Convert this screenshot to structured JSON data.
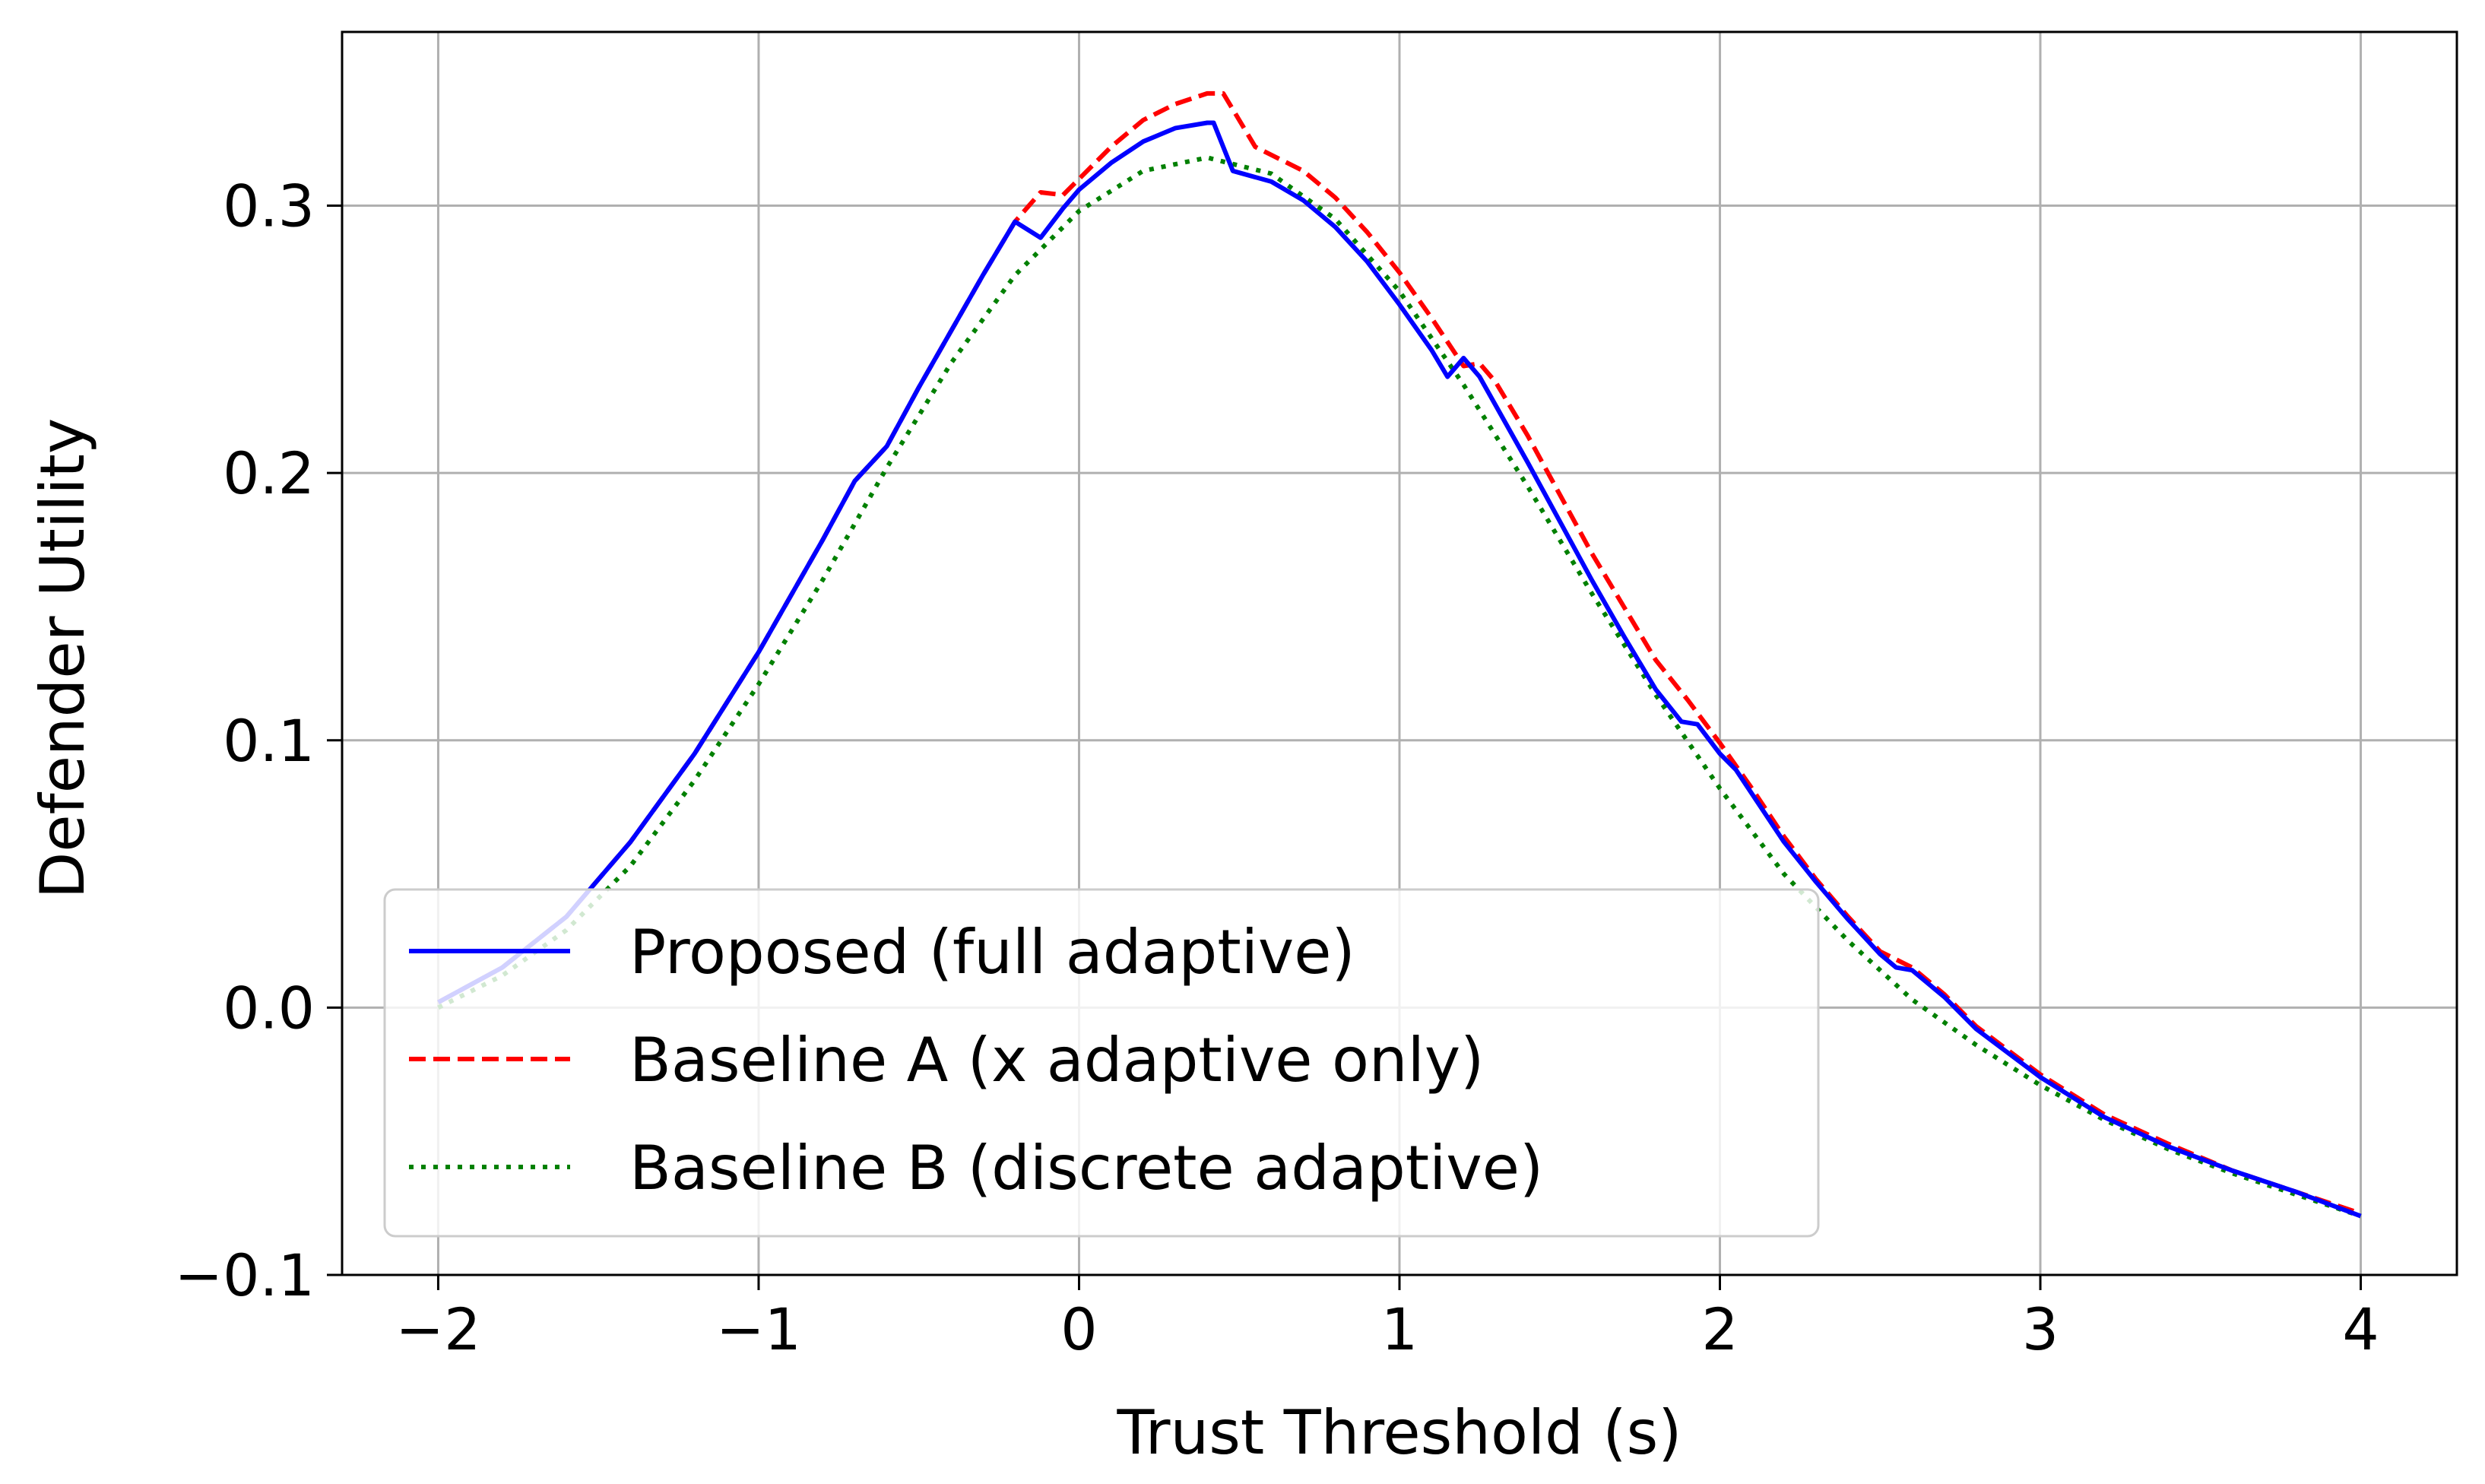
{
  "chart_data": {
    "type": "line",
    "title": "",
    "xlabel": "Trust Threshold (s)",
    "ylabel": "Defender Utility",
    "xlim": [
      -2.3,
      4.3
    ],
    "ylim": [
      -0.1,
      0.365
    ],
    "xticks": [
      -2,
      -1,
      0,
      1,
      2,
      3,
      4
    ],
    "xtick_labels": [
      "−2",
      "−1",
      "0",
      "1",
      "2",
      "3",
      "4"
    ],
    "yticks": [
      -0.1,
      0.0,
      0.1,
      0.2,
      0.3
    ],
    "ytick_labels": [
      "−0.1",
      "0.0",
      "0.1",
      "0.2",
      "0.3"
    ],
    "grid": true,
    "legend_position": "lower-left",
    "series": [
      {
        "name": "Proposed (full adaptive)",
        "color": "#0000ff",
        "style": "solid",
        "points": [
          [
            -2.0,
            0.002
          ],
          [
            -1.8,
            0.015
          ],
          [
            -1.6,
            0.034
          ],
          [
            -1.4,
            0.062
          ],
          [
            -1.2,
            0.095
          ],
          [
            -1.0,
            0.133
          ],
          [
            -0.8,
            0.175
          ],
          [
            -0.7,
            0.197
          ],
          [
            -0.6,
            0.21
          ],
          [
            -0.5,
            0.232
          ],
          [
            -0.4,
            0.253
          ],
          [
            -0.3,
            0.274
          ],
          [
            -0.2,
            0.294
          ],
          [
            -0.12,
            0.288
          ],
          [
            -0.05,
            0.299
          ],
          [
            0.0,
            0.306
          ],
          [
            0.1,
            0.316
          ],
          [
            0.2,
            0.324
          ],
          [
            0.3,
            0.329
          ],
          [
            0.4,
            0.331
          ],
          [
            0.42,
            0.331
          ],
          [
            0.48,
            0.313
          ],
          [
            0.6,
            0.309
          ],
          [
            0.7,
            0.302
          ],
          [
            0.8,
            0.292
          ],
          [
            0.9,
            0.279
          ],
          [
            1.0,
            0.263
          ],
          [
            1.1,
            0.246
          ],
          [
            1.15,
            0.236
          ],
          [
            1.2,
            0.243
          ],
          [
            1.25,
            0.236
          ],
          [
            1.4,
            0.204
          ],
          [
            1.5,
            0.182
          ],
          [
            1.6,
            0.16
          ],
          [
            1.7,
            0.139
          ],
          [
            1.8,
            0.119
          ],
          [
            1.88,
            0.107
          ],
          [
            1.93,
            0.106
          ],
          [
            2.0,
            0.095
          ],
          [
            2.05,
            0.089
          ],
          [
            2.2,
            0.062
          ],
          [
            2.3,
            0.047
          ],
          [
            2.4,
            0.033
          ],
          [
            2.5,
            0.02
          ],
          [
            2.55,
            0.015
          ],
          [
            2.6,
            0.014
          ],
          [
            2.7,
            0.004
          ],
          [
            2.8,
            -0.008
          ],
          [
            3.0,
            -0.026
          ],
          [
            3.2,
            -0.041
          ],
          [
            3.4,
            -0.052
          ],
          [
            3.6,
            -0.061
          ],
          [
            3.8,
            -0.069
          ],
          [
            4.0,
            -0.078
          ]
        ]
      },
      {
        "name": "Baseline A (x adaptive only)",
        "color": "#ff0000",
        "style": "dashed",
        "points": [
          [
            -2.0,
            0.002
          ],
          [
            -1.8,
            0.015
          ],
          [
            -1.6,
            0.034
          ],
          [
            -1.4,
            0.062
          ],
          [
            -1.2,
            0.095
          ],
          [
            -1.0,
            0.133
          ],
          [
            -0.8,
            0.175
          ],
          [
            -0.7,
            0.197
          ],
          [
            -0.6,
            0.21
          ],
          [
            -0.5,
            0.232
          ],
          [
            -0.4,
            0.253
          ],
          [
            -0.3,
            0.274
          ],
          [
            -0.2,
            0.294
          ],
          [
            -0.12,
            0.305
          ],
          [
            -0.05,
            0.304
          ],
          [
            0.0,
            0.31
          ],
          [
            0.1,
            0.322
          ],
          [
            0.2,
            0.332
          ],
          [
            0.3,
            0.338
          ],
          [
            0.4,
            0.342
          ],
          [
            0.45,
            0.342
          ],
          [
            0.55,
            0.322
          ],
          [
            0.7,
            0.313
          ],
          [
            0.8,
            0.303
          ],
          [
            0.9,
            0.29
          ],
          [
            1.0,
            0.275
          ],
          [
            1.1,
            0.258
          ],
          [
            1.2,
            0.24
          ],
          [
            1.25,
            0.241
          ],
          [
            1.3,
            0.234
          ],
          [
            1.4,
            0.214
          ],
          [
            1.5,
            0.192
          ],
          [
            1.6,
            0.17
          ],
          [
            1.7,
            0.15
          ],
          [
            1.8,
            0.13
          ],
          [
            1.9,
            0.115
          ],
          [
            2.0,
            0.099
          ],
          [
            2.1,
            0.082
          ],
          [
            2.2,
            0.064
          ],
          [
            2.3,
            0.048
          ],
          [
            2.4,
            0.034
          ],
          [
            2.5,
            0.021
          ],
          [
            2.6,
            0.015
          ],
          [
            2.7,
            0.005
          ],
          [
            2.8,
            -0.007
          ],
          [
            3.0,
            -0.025
          ],
          [
            3.2,
            -0.04
          ],
          [
            3.4,
            -0.051
          ],
          [
            3.6,
            -0.061
          ],
          [
            3.8,
            -0.069
          ],
          [
            4.0,
            -0.077
          ]
        ]
      },
      {
        "name": "Baseline B (discrete adaptive)",
        "color": "#008000",
        "style": "dotted",
        "points": [
          [
            -2.0,
            0.0
          ],
          [
            -1.8,
            0.012
          ],
          [
            -1.6,
            0.029
          ],
          [
            -1.4,
            0.053
          ],
          [
            -1.2,
            0.085
          ],
          [
            -1.0,
            0.121
          ],
          [
            -0.8,
            0.16
          ],
          [
            -0.6,
            0.202
          ],
          [
            -0.4,
            0.241
          ],
          [
            -0.2,
            0.274
          ],
          [
            0.0,
            0.298
          ],
          [
            0.2,
            0.313
          ],
          [
            0.4,
            0.318
          ],
          [
            0.6,
            0.312
          ],
          [
            0.8,
            0.295
          ],
          [
            1.0,
            0.268
          ],
          [
            1.2,
            0.233
          ],
          [
            1.4,
            0.195
          ],
          [
            1.6,
            0.155
          ],
          [
            1.8,
            0.117
          ],
          [
            2.0,
            0.082
          ],
          [
            2.2,
            0.05
          ],
          [
            2.4,
            0.025
          ],
          [
            2.6,
            0.003
          ],
          [
            2.8,
            -0.014
          ],
          [
            3.0,
            -0.029
          ],
          [
            3.2,
            -0.042
          ],
          [
            3.4,
            -0.053
          ],
          [
            3.6,
            -0.062
          ],
          [
            3.8,
            -0.07
          ],
          [
            4.0,
            -0.078
          ]
        ]
      }
    ]
  }
}
